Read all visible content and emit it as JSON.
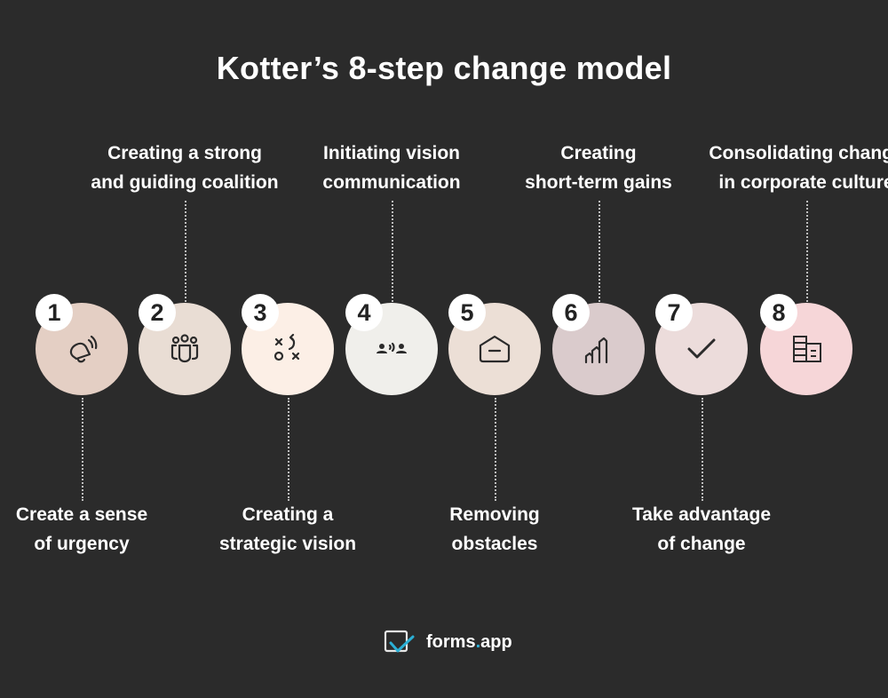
{
  "title": "Kotter’s 8-step change model",
  "steps": [
    {
      "number": "1",
      "label": [
        "Create a sense",
        "of urgency"
      ],
      "position": "bottom",
      "color": "#e4cfc4",
      "icon": "bell-ringing-icon"
    },
    {
      "number": "2",
      "label": [
        "Creating a strong",
        "and guiding coalition"
      ],
      "position": "top",
      "color": "#e9ddd4",
      "icon": "team-icon"
    },
    {
      "number": "3",
      "label": [
        "Creating a",
        "strategic vision"
      ],
      "position": "bottom",
      "color": "#fcefe6",
      "icon": "strategy-icon"
    },
    {
      "number": "4",
      "label": [
        "Initiating vision",
        "communication"
      ],
      "position": "top",
      "color": "#f0efeb",
      "icon": "communication-icon"
    },
    {
      "number": "5",
      "label": [
        "Removing",
        "obstacles"
      ],
      "position": "bottom",
      "color": "#ecdfd6",
      "icon": "home-minus-icon"
    },
    {
      "number": "6",
      "label": [
        "Creating",
        "short-term gains"
      ],
      "position": "top",
      "color": "#dacbcc",
      "icon": "growth-chart-icon"
    },
    {
      "number": "7",
      "label": [
        "Take advantage",
        "of change"
      ],
      "position": "bottom",
      "color": "#ecdcdb",
      "icon": "checkmark-icon"
    },
    {
      "number": "8",
      "label": [
        "Consolidating change",
        "in corporate culture"
      ],
      "position": "top",
      "color": "#f6d6d8",
      "icon": "building-icon"
    }
  ],
  "logo": {
    "name": "forms",
    "dot": ".",
    "suffix": "app",
    "accent": "#2bb0d6"
  }
}
